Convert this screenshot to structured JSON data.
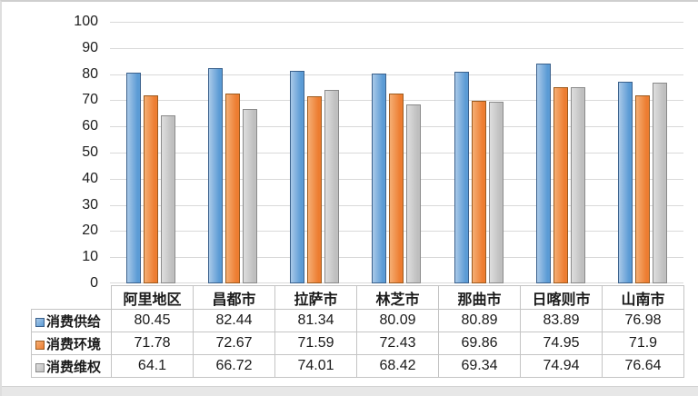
{
  "chart_data": {
    "type": "bar",
    "title": "",
    "xlabel": "",
    "ylabel": "",
    "categories": [
      "阿里地区",
      "昌都市",
      "拉萨市",
      "林芝市",
      "那曲市",
      "日喀则市",
      "山南市"
    ],
    "series": [
      {
        "name": "消费供给",
        "values": [
          80.45,
          82.44,
          81.34,
          80.09,
          80.89,
          83.89,
          76.98
        ],
        "fill": "#5b9bd5",
        "fill_light": "#a9c9e8",
        "border": "#3b618c"
      },
      {
        "name": "消费环境",
        "values": [
          71.78,
          72.67,
          71.59,
          72.43,
          69.86,
          74.95,
          71.9
        ],
        "fill": "#ed7d31",
        "fill_light": "#f5ae74",
        "border": "#9c5a1e"
      },
      {
        "name": "消费维权",
        "values": [
          64.1,
          66.72,
          74.01,
          68.42,
          69.34,
          74.94,
          76.64
        ],
        "fill": "#bfbfbf",
        "fill_light": "#dedede",
        "border": "#8a8a8a"
      }
    ],
    "ylim": [
      0,
      100
    ],
    "yticks": [
      0,
      10,
      20,
      30,
      40,
      50,
      60,
      70,
      80,
      90,
      100
    ],
    "grid": true,
    "gridline_color": "#d9d9d9",
    "legend_position": "table-left"
  }
}
